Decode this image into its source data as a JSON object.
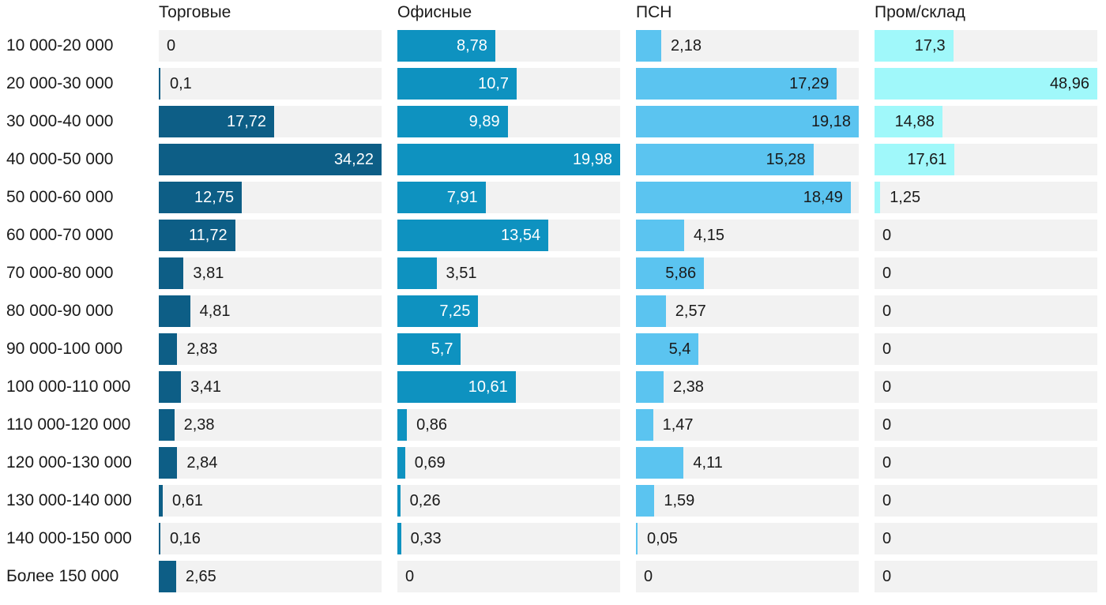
{
  "chart_data": {
    "type": "bar",
    "orientation": "horizontal",
    "title": "",
    "xlabel": "",
    "ylabel": "",
    "grid": false,
    "legend_position": "column-headers",
    "scaling": "each column scaled independently so the column maximum fills the full track width",
    "decimal_separator": ",",
    "categories": [
      "10 000-20 000",
      "20 000-30 000",
      "30 000-40 000",
      "40 000-50 000",
      "50 000-60 000",
      "60 000-70 000",
      "70 000-80 000",
      "80 000-90 000",
      "90 000-100 000",
      "100 000-110 000",
      "110 000-120 000",
      "120 000-130 000",
      "130 000-140 000",
      "140 000-150 000",
      "Более 150 000"
    ],
    "series": [
      {
        "name": "Торговые",
        "bar_color": "#0d5e86",
        "label_color_inside": "#ffffff",
        "values": [
          0,
          0.1,
          17.72,
          34.22,
          12.75,
          11.72,
          3.81,
          4.81,
          2.83,
          3.41,
          2.38,
          2.84,
          0.61,
          0.16,
          2.65
        ]
      },
      {
        "name": "Офисные",
        "bar_color": "#0e92c0",
        "label_color_inside": "#ffffff",
        "values": [
          8.78,
          10.7,
          9.89,
          19.98,
          7.91,
          13.54,
          3.51,
          7.25,
          5.7,
          10.61,
          0.86,
          0.69,
          0.26,
          0.33,
          0
        ]
      },
      {
        "name": "ПСН",
        "bar_color": "#5bc4f0",
        "label_color_inside": "#1a1a1a",
        "values": [
          2.18,
          17.29,
          19.18,
          15.28,
          18.49,
          4.15,
          5.86,
          2.57,
          5.4,
          2.38,
          1.47,
          4.11,
          1.59,
          0.05,
          0
        ]
      },
      {
        "name": "Пром/склад",
        "bar_color": "#a0f8fa",
        "label_color_inside": "#1a1a1a",
        "values": [
          17.3,
          48.96,
          14.88,
          17.61,
          1.25,
          0,
          0,
          0,
          0,
          0,
          0,
          0,
          0,
          0,
          0
        ]
      }
    ],
    "colors": {
      "track_background": "#f2f2f2",
      "page_background": "#ffffff",
      "text": "#1a1a1a",
      "label_color_outside": "#1a1a1a"
    }
  }
}
